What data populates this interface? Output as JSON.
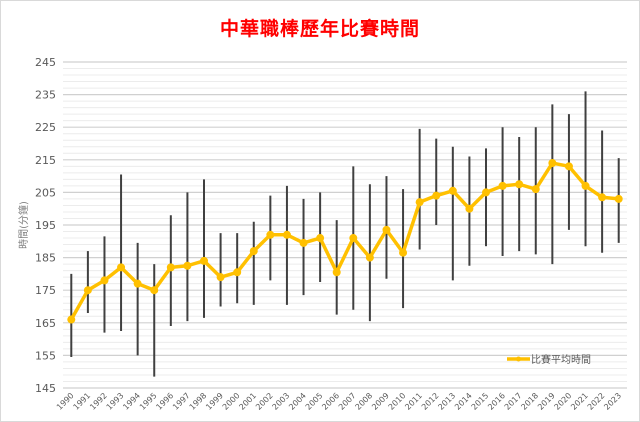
{
  "chart_data": {
    "type": "line",
    "title": "中華職棒歷年比賽時間",
    "xlabel": "",
    "ylabel": "時間(分鐘)",
    "ylim": [
      145,
      245
    ],
    "yticks": [
      145,
      155,
      165,
      175,
      185,
      195,
      205,
      215,
      225,
      235,
      245
    ],
    "grid": true,
    "legend_position": "bottom-right",
    "line_color": "#FFC000",
    "error_bar_color": "#404040",
    "categories": [
      "1990",
      "1991",
      "1992",
      "1993",
      "1994",
      "1995",
      "1996",
      "1997",
      "1998",
      "1999",
      "2000",
      "2001",
      "2002",
      "2003",
      "2004",
      "2005",
      "2006",
      "2007",
      "2008",
      "2009",
      "2010",
      "2011",
      "2012",
      "2013",
      "2014",
      "2015",
      "2016",
      "2017",
      "2018",
      "2019",
      "2020",
      "2021",
      "2022",
      "2023"
    ],
    "series": [
      {
        "name": "比賽平均時間",
        "values": [
          166,
          175,
          178,
          182,
          177,
          175,
          182,
          182.5,
          184,
          179,
          180.5,
          187,
          192,
          192,
          189.5,
          191,
          180.5,
          191,
          185,
          193.5,
          186.5,
          202,
          204,
          205.5,
          200,
          205,
          207,
          207.5,
          206,
          214,
          213,
          207,
          203.5,
          203
        ]
      }
    ],
    "ranges": {
      "high": [
        180,
        187,
        191.5,
        210.5,
        189.5,
        183,
        198,
        205,
        209,
        192.5,
        192.5,
        196,
        204,
        207,
        203,
        205,
        196.5,
        213,
        207.5,
        210,
        206,
        224.5,
        221.5,
        219,
        216,
        218.5,
        225,
        222,
        225,
        232,
        229,
        236,
        224,
        215.5
      ],
      "low": [
        154.5,
        168,
        162,
        162.5,
        155,
        148.5,
        164,
        165.5,
        166.5,
        170,
        171,
        170.5,
        178,
        170.5,
        173.5,
        177.5,
        167.5,
        169,
        165.5,
        178.5,
        169.5,
        187.5,
        195,
        178,
        182.5,
        188.5,
        185.5,
        187,
        186,
        183,
        193.5,
        188.5,
        186.5,
        189.5
      ]
    }
  }
}
